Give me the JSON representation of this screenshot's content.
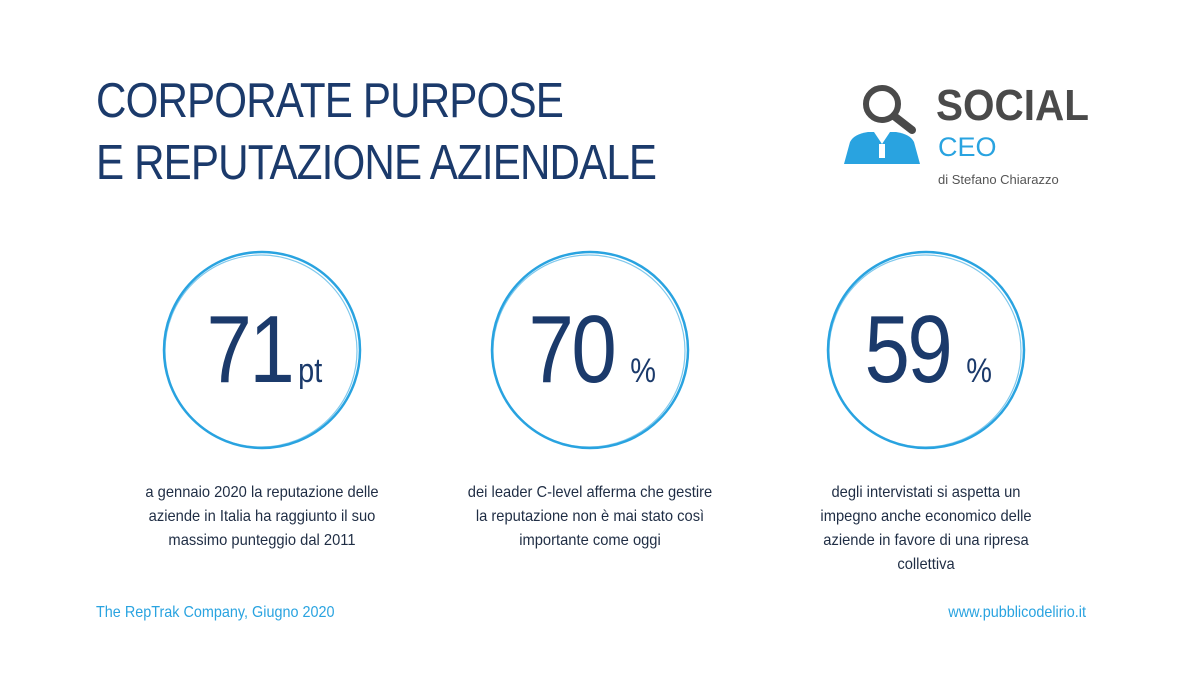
{
  "title": {
    "line1": "CORPORATE PURPOSE",
    "line2": "E REPUTAZIONE AZIENDALE"
  },
  "logo": {
    "word1": "SOCIAL",
    "word2": "CEO",
    "subtitle": "di Stefano Chiarazzo",
    "icon": "magnifier-person-icon",
    "colors": {
      "gray": "#4a4a4a",
      "blue": "#29a3e0"
    }
  },
  "stats": [
    {
      "value": "71",
      "unit": "pt",
      "description": "a gennaio 2020 la reputazione delle aziende in Italia ha raggiunto il suo massimo punteggio dal 2011"
    },
    {
      "value": "70",
      "unit": "%",
      "description": "dei leader C-level afferma che gestire la reputazione non è mai stato così importante come oggi"
    },
    {
      "value": "59",
      "unit": "%",
      "description": "degli intervistati si aspetta un impegno anche economico delle aziende in favore di una ripresa collettiva"
    }
  ],
  "footer": {
    "source": "The RepTrak Company, Giugno 2020",
    "website": "www.pubblicodelirio.it"
  },
  "colors": {
    "navy": "#1b3a6b",
    "accent": "#29a3e0"
  }
}
